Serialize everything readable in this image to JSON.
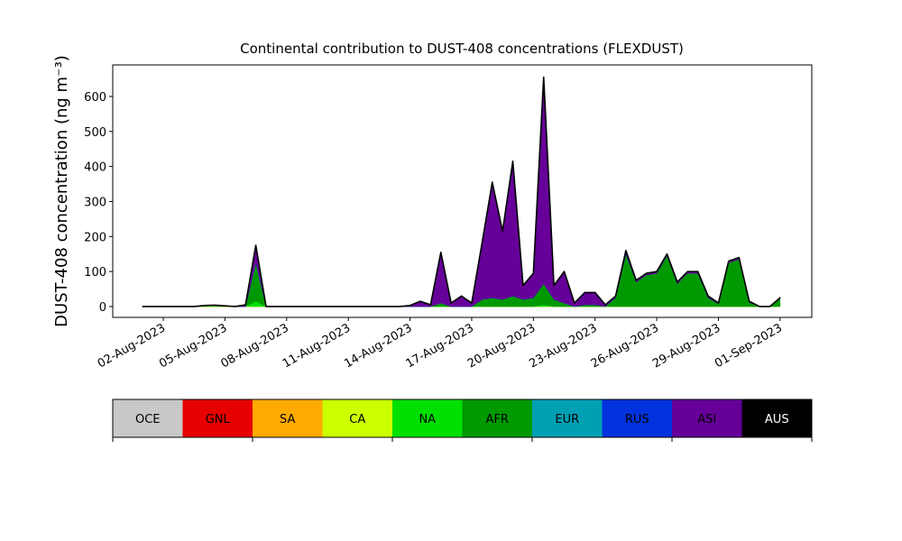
{
  "chart_data": {
    "type": "stacked_area",
    "title": "Continental contribution to DUST-408 concentrations (FLEXDUST)",
    "y_label": "DUST-408 concentration (ng m⁻³)",
    "x": [
      "2023-08-01T00:00",
      "2023-08-01T12:00",
      "2023-08-02T00:00",
      "2023-08-02T12:00",
      "2023-08-03T00:00",
      "2023-08-03T12:00",
      "2023-08-04T00:00",
      "2023-08-04T12:00",
      "2023-08-05T00:00",
      "2023-08-05T12:00",
      "2023-08-06T00:00",
      "2023-08-06T12:00",
      "2023-08-07T00:00",
      "2023-08-07T12:00",
      "2023-08-08T00:00",
      "2023-08-08T12:00",
      "2023-08-09T00:00",
      "2023-08-09T12:00",
      "2023-08-10T00:00",
      "2023-08-10T12:00",
      "2023-08-11T00:00",
      "2023-08-11T12:00",
      "2023-08-12T00:00",
      "2023-08-12T12:00",
      "2023-08-13T00:00",
      "2023-08-13T12:00",
      "2023-08-14T00:00",
      "2023-08-14T12:00",
      "2023-08-15T00:00",
      "2023-08-15T12:00",
      "2023-08-16T00:00",
      "2023-08-16T12:00",
      "2023-08-17T00:00",
      "2023-08-17T12:00",
      "2023-08-18T00:00",
      "2023-08-18T12:00",
      "2023-08-19T00:00",
      "2023-08-19T12:00",
      "2023-08-20T00:00",
      "2023-08-20T12:00",
      "2023-08-21T00:00",
      "2023-08-21T12:00",
      "2023-08-22T00:00",
      "2023-08-22T12:00",
      "2023-08-23T00:00",
      "2023-08-23T12:00",
      "2023-08-24T00:00",
      "2023-08-24T12:00",
      "2023-08-25T00:00",
      "2023-08-25T12:00",
      "2023-08-26T00:00",
      "2023-08-26T12:00",
      "2023-08-27T00:00",
      "2023-08-27T12:00",
      "2023-08-28T00:00",
      "2023-08-28T12:00",
      "2023-08-29T00:00",
      "2023-08-29T12:00",
      "2023-08-30T00:00",
      "2023-08-30T12:00",
      "2023-08-31T00:00",
      "2023-08-31T12:00",
      "2023-09-01T00:00"
    ],
    "series": [
      {
        "name": "OCE",
        "color": "#c8c8c8",
        "values": [
          0,
          0,
          0,
          0,
          0,
          0,
          0,
          0,
          0,
          0,
          0,
          0,
          0,
          0,
          0,
          0,
          0,
          0,
          0,
          0,
          0,
          0,
          0,
          0,
          0,
          0,
          0,
          0,
          0,
          0,
          0,
          0,
          0,
          0,
          0,
          0,
          0,
          0,
          0,
          0,
          0,
          0,
          0,
          0,
          0,
          0,
          0,
          0,
          0,
          0,
          0,
          0,
          0,
          0,
          0,
          0,
          0,
          0,
          0,
          0,
          0,
          0,
          0
        ]
      },
      {
        "name": "GNL",
        "color": "#e60000",
        "values": [
          0,
          0,
          0,
          0,
          0,
          0,
          0,
          0,
          0,
          0,
          0,
          0,
          0,
          0,
          0,
          0,
          0,
          0,
          0,
          0,
          0,
          0,
          0,
          0,
          0,
          0,
          0,
          0,
          0,
          0,
          0,
          0,
          0,
          0,
          0,
          0,
          0,
          0,
          0,
          0,
          0,
          0,
          0,
          0,
          0,
          0,
          0,
          0,
          0,
          0,
          0,
          0,
          0,
          0,
          0,
          0,
          0,
          0,
          0,
          0,
          0,
          0,
          0
        ]
      },
      {
        "name": "SA",
        "color": "#ffaa00",
        "values": [
          0,
          0,
          0,
          0,
          0,
          0,
          0,
          0,
          0,
          0,
          0,
          0,
          0,
          0,
          0,
          0,
          0,
          0,
          0,
          0,
          0,
          0,
          0,
          0,
          0,
          0,
          0,
          0,
          0,
          0,
          0,
          0,
          0,
          0,
          0,
          0,
          0,
          0,
          0,
          0,
          0,
          0,
          0,
          0,
          0,
          0,
          0,
          0,
          0,
          0,
          0,
          0,
          0,
          0,
          0,
          0,
          0,
          0,
          0,
          0,
          0,
          0,
          0
        ]
      },
      {
        "name": "CA",
        "color": "#ccff00",
        "values": [
          0,
          0,
          0,
          0,
          0,
          0,
          0,
          0,
          0,
          0,
          0,
          0,
          0,
          0,
          0,
          0,
          0,
          0,
          0,
          0,
          0,
          0,
          0,
          0,
          0,
          0,
          0,
          0,
          0,
          0,
          0,
          0,
          0,
          0,
          0,
          0,
          0,
          0,
          0,
          0,
          0,
          0,
          0,
          0,
          0,
          0,
          0,
          0,
          0,
          0,
          0,
          0,
          0,
          0,
          0,
          0,
          0,
          0,
          0,
          0,
          0,
          0,
          0
        ]
      },
      {
        "name": "NA",
        "color": "#00e000",
        "values": [
          0,
          0,
          0,
          0,
          0,
          0,
          3,
          4,
          2,
          0,
          0,
          15,
          0,
          0,
          0,
          0,
          0,
          0,
          0,
          0,
          0,
          0,
          0,
          0,
          0,
          0,
          0,
          0,
          0,
          0,
          0,
          0,
          0,
          0,
          0,
          0,
          0,
          0,
          0,
          5,
          0,
          0,
          0,
          0,
          0,
          0,
          0,
          0,
          0,
          0,
          0,
          0,
          0,
          0,
          0,
          0,
          0,
          0,
          0,
          0,
          0,
          0,
          0
        ]
      },
      {
        "name": "AFR",
        "color": "#009900",
        "values": [
          0,
          0,
          0,
          0,
          0,
          0,
          0,
          0,
          0,
          0,
          0,
          110,
          0,
          0,
          0,
          0,
          0,
          0,
          0,
          0,
          0,
          0,
          0,
          0,
          0,
          0,
          0,
          0,
          0,
          10,
          0,
          0,
          0,
          20,
          25,
          20,
          30,
          20,
          25,
          60,
          20,
          10,
          0,
          5,
          5,
          0,
          25,
          150,
          70,
          90,
          95,
          145,
          65,
          95,
          95,
          25,
          8,
          125,
          135,
          12,
          0,
          0,
          22
        ]
      },
      {
        "name": "EUR",
        "color": "#00a0b4",
        "values": [
          0,
          0,
          0,
          0,
          0,
          0,
          0,
          0,
          0,
          0,
          0,
          0,
          0,
          0,
          0,
          0,
          0,
          0,
          0,
          0,
          0,
          0,
          0,
          0,
          0,
          0,
          0,
          0,
          0,
          0,
          0,
          0,
          0,
          0,
          0,
          0,
          0,
          0,
          0,
          0,
          0,
          0,
          0,
          0,
          0,
          0,
          0,
          0,
          0,
          0,
          0,
          0,
          0,
          0,
          0,
          0,
          0,
          0,
          0,
          0,
          0,
          0,
          0
        ]
      },
      {
        "name": "RUS",
        "color": "#0033dd",
        "values": [
          0,
          0,
          0,
          0,
          0,
          0,
          0,
          0,
          0,
          0,
          0,
          0,
          0,
          0,
          0,
          0,
          0,
          0,
          0,
          0,
          0,
          0,
          0,
          0,
          0,
          0,
          0,
          0,
          0,
          0,
          0,
          0,
          0,
          0,
          0,
          0,
          0,
          0,
          0,
          0,
          0,
          0,
          0,
          0,
          0,
          0,
          0,
          0,
          0,
          0,
          0,
          0,
          0,
          0,
          0,
          0,
          0,
          0,
          0,
          0,
          0,
          0,
          0
        ]
      },
      {
        "name": "ASI",
        "color": "#660099",
        "values": [
          0,
          0,
          0,
          0,
          0,
          0,
          0,
          0,
          0,
          0,
          5,
          50,
          0,
          0,
          0,
          0,
          0,
          0,
          0,
          0,
          0,
          0,
          0,
          0,
          0,
          0,
          3,
          15,
          5,
          145,
          10,
          30,
          10,
          160,
          330,
          195,
          385,
          40,
          70,
          590,
          40,
          90,
          10,
          35,
          35,
          5,
          5,
          10,
          5,
          5,
          5,
          5,
          5,
          5,
          5,
          5,
          2,
          5,
          5,
          3,
          0,
          0,
          3
        ]
      },
      {
        "name": "AUS",
        "color": "#000000",
        "values": [
          0,
          0,
          0,
          0,
          0,
          0,
          0,
          0,
          0,
          0,
          0,
          0,
          0,
          0,
          0,
          0,
          0,
          0,
          0,
          0,
          0,
          0,
          0,
          0,
          0,
          0,
          0,
          0,
          0,
          0,
          0,
          0,
          0,
          0,
          0,
          0,
          0,
          0,
          0,
          0,
          0,
          0,
          0,
          0,
          0,
          0,
          0,
          0,
          0,
          0,
          0,
          0,
          0,
          0,
          0,
          0,
          0,
          0,
          0,
          0,
          0,
          0,
          0
        ]
      }
    ],
    "xlim": [
      "2023-07-30T13:00",
      "2023-09-02T13:00"
    ],
    "xticks": [
      {
        "value": "2023-08-02",
        "label": "02-Aug-2023"
      },
      {
        "value": "2023-08-05",
        "label": "05-Aug-2023"
      },
      {
        "value": "2023-08-08",
        "label": "08-Aug-2023"
      },
      {
        "value": "2023-08-11",
        "label": "11-Aug-2023"
      },
      {
        "value": "2023-08-14",
        "label": "14-Aug-2023"
      },
      {
        "value": "2023-08-17",
        "label": "17-Aug-2023"
      },
      {
        "value": "2023-08-20",
        "label": "20-Aug-2023"
      },
      {
        "value": "2023-08-23",
        "label": "23-Aug-2023"
      },
      {
        "value": "2023-08-26",
        "label": "26-Aug-2023"
      },
      {
        "value": "2023-08-29",
        "label": "29-Aug-2023"
      },
      {
        "value": "2023-09-01",
        "label": "01-Sep-2023"
      }
    ],
    "ylim": [
      -31,
      690
    ],
    "yticks": [
      0,
      100,
      200,
      300,
      400,
      500,
      600
    ],
    "grid": false
  }
}
